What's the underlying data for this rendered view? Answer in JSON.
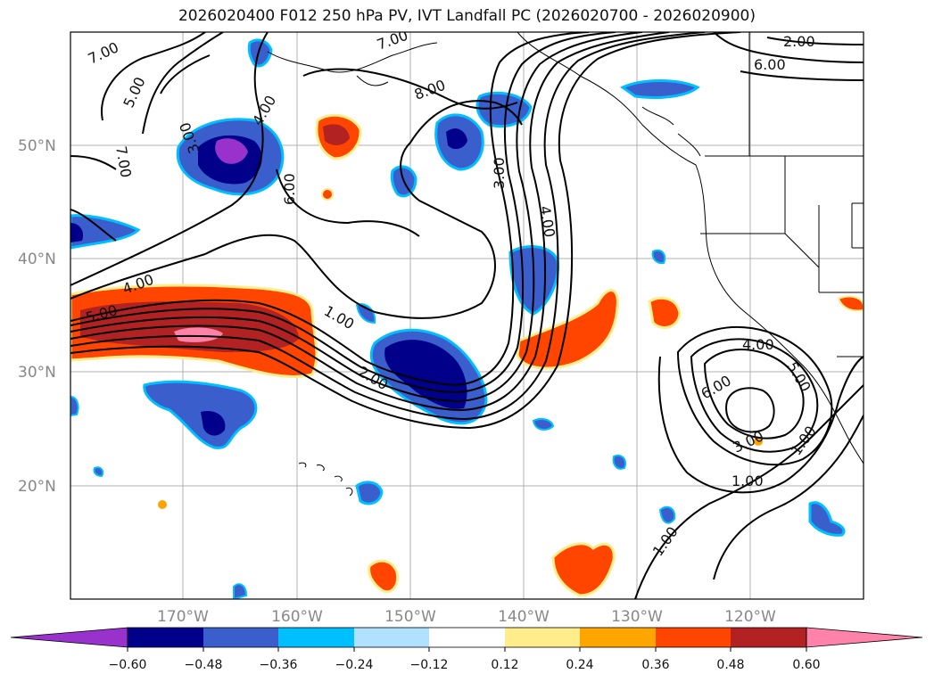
{
  "title": "2026020400 F012 250 hPa PV, IVT Landfall PC (2026020700 - 2026020900)",
  "axes": {
    "lon_labels": [
      "170°W",
      "160°W",
      "150°W",
      "140°W",
      "130°W",
      "120°W"
    ],
    "lat_labels": [
      "50°N",
      "40°N",
      "30°N",
      "20°N"
    ]
  },
  "contour_labels": [
    "7.00",
    "5.00",
    "3.00",
    "4.00",
    "7.00",
    "6.00",
    "7.00",
    "8.00",
    "3.00",
    "4.00",
    "2.00",
    "6.00",
    "4.00",
    "5.00",
    "1.00",
    "2.00",
    "4.00",
    "5.00",
    "6.00",
    "3.00",
    "1.00",
    "1.00"
  ],
  "colorbar": {
    "ticks": [
      "−0.60",
      "−0.48",
      "−0.36",
      "−0.24",
      "−0.12",
      "0.12",
      "0.24",
      "0.36",
      "0.48",
      "0.60"
    ],
    "colors": [
      "#9932cc",
      "#00008b",
      "#3a5fcd",
      "#00bfff",
      "#b0e2ff",
      "#ffffff",
      "#ffec8b",
      "#ffa500",
      "#ff4500",
      "#b22222",
      "#ff82ab"
    ]
  }
}
